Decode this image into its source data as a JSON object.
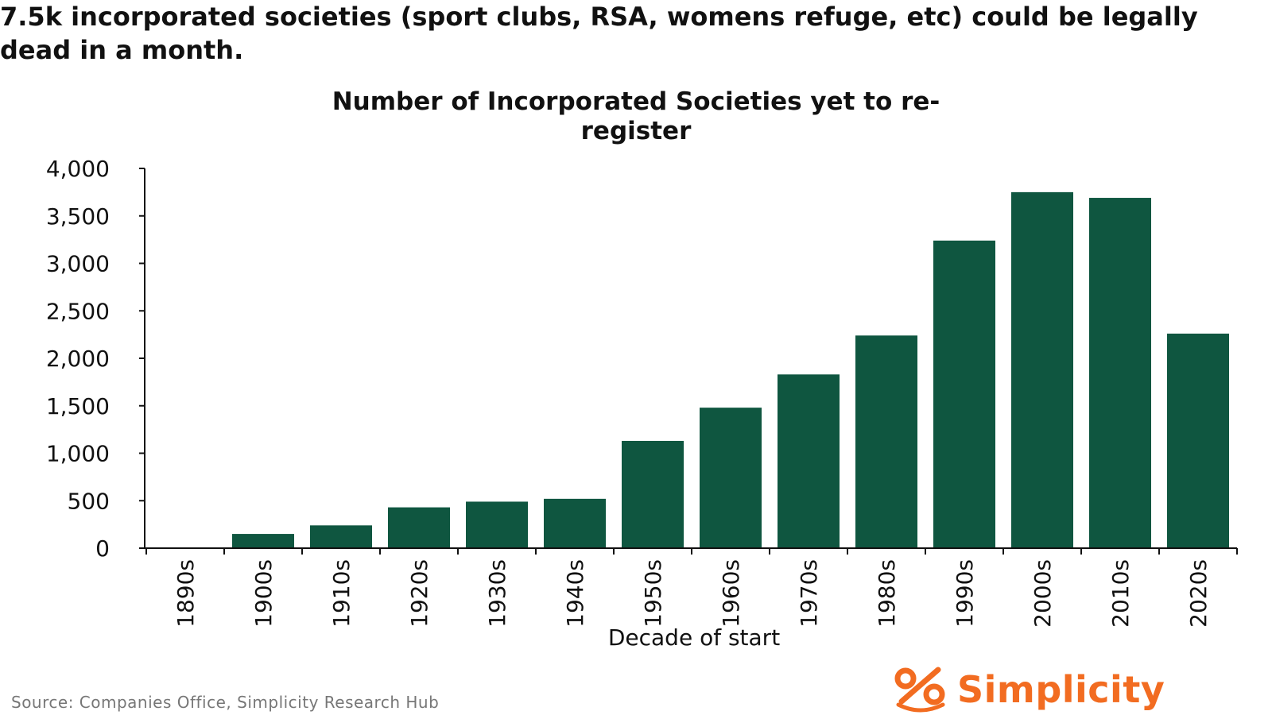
{
  "headline": "7.5k incorporated societies (sport clubs, RSA, womens refuge, etc) could be legally dead in a month.",
  "source": "Source: Companies Office, Simplicity Research Hub",
  "brand": {
    "name": "Simplicity",
    "icon": "percent-logo-icon",
    "color": "#f26c21"
  },
  "colors": {
    "bar": "#0f5640",
    "axis": "#111111"
  },
  "chart_data": {
    "type": "bar",
    "title": "Number of Incorporated Societies yet to re-register",
    "title_lines": [
      "Number of Incorporated Societies yet to re-",
      "register"
    ],
    "xlabel": "Decade of start",
    "ylabel": "",
    "categories": [
      "1890s",
      "1900s",
      "1910s",
      "1920s",
      "1930s",
      "1940s",
      "1950s",
      "1960s",
      "1970s",
      "1980s",
      "1990s",
      "2000s",
      "2010s",
      "2020s"
    ],
    "values": [
      0,
      150,
      240,
      430,
      490,
      520,
      1130,
      1480,
      1830,
      2240,
      3240,
      3750,
      3690,
      2260
    ],
    "ylim": [
      0,
      4000
    ],
    "yticks": [
      0,
      500,
      1000,
      1500,
      2000,
      2500,
      3000,
      3500,
      4000
    ],
    "ytick_labels": [
      "0",
      "500",
      "1,000",
      "1,500",
      "2,000",
      "2,500",
      "3,000",
      "3,500",
      "4,000"
    ],
    "grid": false,
    "legend": "none"
  }
}
